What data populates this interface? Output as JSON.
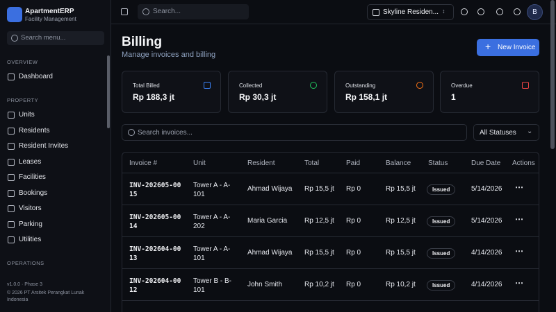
{
  "app": {
    "name": "ApartmentERP",
    "subtitle": "Facility Management"
  },
  "sidebar": {
    "search": "Search menu...",
    "sections": [
      {
        "title": "OVERVIEW",
        "items": [
          "Dashboard"
        ]
      },
      {
        "title": "PROPERTY",
        "items": [
          "Units",
          "Residents",
          "Resident Invites",
          "Leases",
          "Facilities",
          "Bookings",
          "Visitors",
          "Parking",
          "Utilities"
        ]
      },
      {
        "title": "OPERATIONS",
        "items": []
      }
    ],
    "version": "v1.0.0 · Phase 3",
    "copyright": "© 2026 PT Arsitek Perangkat Lunak Indonesia"
  },
  "topbar": {
    "search": "Search...",
    "property": "Skyline Residen...",
    "avatar": "B"
  },
  "page": {
    "title": "Billing",
    "subtitle": "Manage invoices and billing",
    "button": "New Invoice"
  },
  "stats": [
    {
      "label": "Total Billed",
      "value": "Rp 188,3 jt"
    },
    {
      "label": "Collected",
      "value": "Rp 30,3 jt"
    },
    {
      "label": "Outstanding",
      "value": "Rp 158,1 jt"
    },
    {
      "label": "Overdue",
      "value": "1"
    }
  ],
  "filters": {
    "search": "Search invoices...",
    "status": "All Statuses"
  },
  "table": {
    "headers": [
      "Invoice #",
      "Unit",
      "Resident",
      "Total",
      "Paid",
      "Balance",
      "Status",
      "Due Date",
      "Actions"
    ],
    "rows": [
      [
        "INV-202605-0015",
        "Tower A - A-101",
        "Ahmad Wijaya",
        "Rp 15,5 jt",
        "Rp 0",
        "Rp 15,5 jt",
        "Issued",
        "5/14/2026"
      ],
      [
        "INV-202605-0014",
        "Tower A - A-202",
        "Maria Garcia",
        "Rp 12,5 jt",
        "Rp 0",
        "Rp 12,5 jt",
        "Issued",
        "5/14/2026"
      ],
      [
        "INV-202604-0013",
        "Tower A - A-101",
        "Ahmad Wijaya",
        "Rp 15,5 jt",
        "Rp 0",
        "Rp 15,5 jt",
        "Issued",
        "4/14/2026"
      ],
      [
        "INV-202604-0012",
        "Tower B - B-101",
        "John Smith",
        "Rp 10,2 jt",
        "Rp 0",
        "Rp 10,2 jt",
        "Issued",
        "4/14/2026"
      ]
    ]
  }
}
